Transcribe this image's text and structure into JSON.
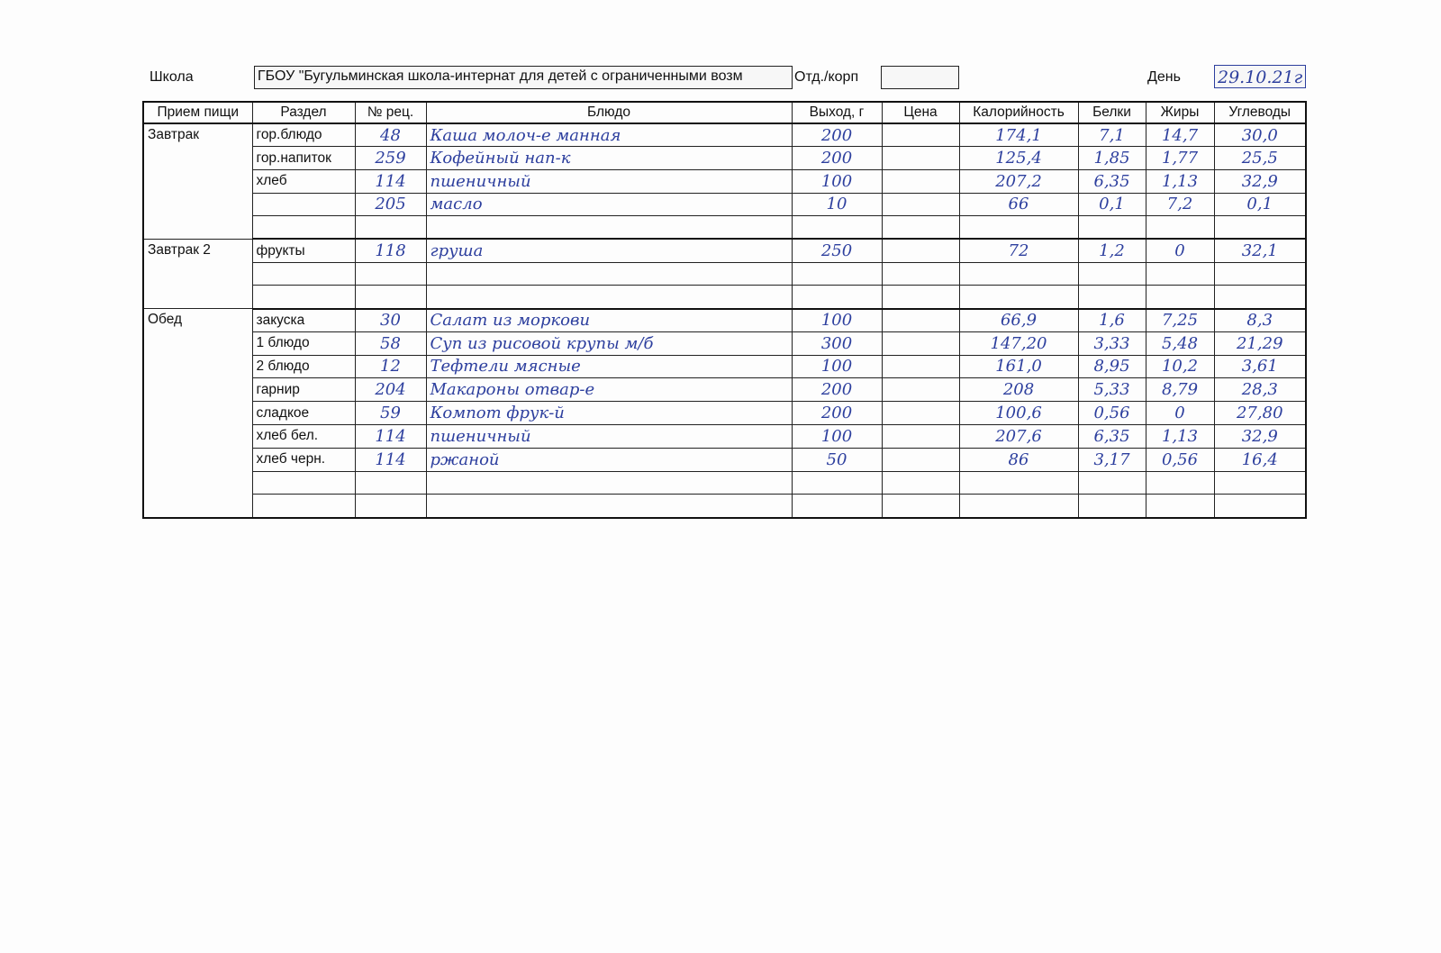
{
  "header": {
    "school_label": "Школа",
    "school_value": "ГБОУ \"Бугульминская школа-интернат для детей с ограниченными возм",
    "dept_label": "Отд./корп",
    "dept_value": "",
    "day_label": "День",
    "day_value": "29.10.21г"
  },
  "table": {
    "columns": [
      "Прием пищи",
      "Раздел",
      "№ рец.",
      "Блюдо",
      "Выход, г",
      "Цена",
      "Калорийность",
      "Белки",
      "Жиры",
      "Углеводы"
    ],
    "groups": [
      {
        "meal": "Завтрак",
        "rows": [
          [
            "гор.блюдо",
            "48",
            "Каша молоч-е манная",
            "200",
            "",
            "174,1",
            "7,1",
            "14,7",
            "30,0"
          ],
          [
            "гор.напиток",
            "259",
            "Кофейный нап-к",
            "200",
            "",
            "125,4",
            "1,85",
            "1,77",
            "25,5"
          ],
          [
            "хлеб",
            "114",
            "пшеничный",
            "100",
            "",
            "207,2",
            "6,35",
            "1,13",
            "32,9"
          ],
          [
            "",
            "205",
            "масло",
            "10",
            "",
            "66",
            "0,1",
            "7,2",
            "0,1"
          ],
          [
            "",
            "",
            "",
            "",
            "",
            "",
            "",
            "",
            ""
          ]
        ]
      },
      {
        "meal": "Завтрак 2",
        "rows": [
          [
            "фрукты",
            "118",
            "груша",
            "250",
            "",
            "72",
            "1,2",
            "0",
            "32,1"
          ],
          [
            "",
            "",
            "",
            "",
            "",
            "",
            "",
            "",
            ""
          ],
          [
            "",
            "",
            "",
            "",
            "",
            "",
            "",
            "",
            ""
          ]
        ]
      },
      {
        "meal": "Обед",
        "rows": [
          [
            "закуска",
            "30",
            "Салат из моркови",
            "100",
            "",
            "66,9",
            "1,6",
            "7,25",
            "8,3"
          ],
          [
            "1 блюдо",
            "58",
            "Суп из рисовой крупы м/б",
            "300",
            "",
            "147,20",
            "3,33",
            "5,48",
            "21,29"
          ],
          [
            "2 блюдо",
            "12",
            "Тефтели мясные",
            "100",
            "",
            "161,0",
            "8,95",
            "10,2",
            "3,61"
          ],
          [
            "гарнир",
            "204",
            "Макароны отвар-е",
            "200",
            "",
            "208",
            "5,33",
            "8,79",
            "28,3"
          ],
          [
            "сладкое",
            "59",
            "Компот фрук-й",
            "200",
            "",
            "100,6",
            "0,56",
            "0",
            "27,80"
          ],
          [
            "хлеб бел.",
            "114",
            "пшеничный",
            "100",
            "",
            "207,6",
            "6,35",
            "1,13",
            "32,9"
          ],
          [
            "хлеб черн.",
            "114",
            "ржаной",
            "50",
            "",
            "86",
            "3,17",
            "0,56",
            "16,4"
          ],
          [
            "",
            "",
            "",
            "",
            "",
            "",
            "",
            "",
            ""
          ],
          [
            "",
            "",
            "",
            "",
            "",
            "",
            "",
            "",
            ""
          ]
        ]
      }
    ]
  },
  "colors": {
    "ink": "#2d3f9e",
    "lines": "#111111"
  }
}
